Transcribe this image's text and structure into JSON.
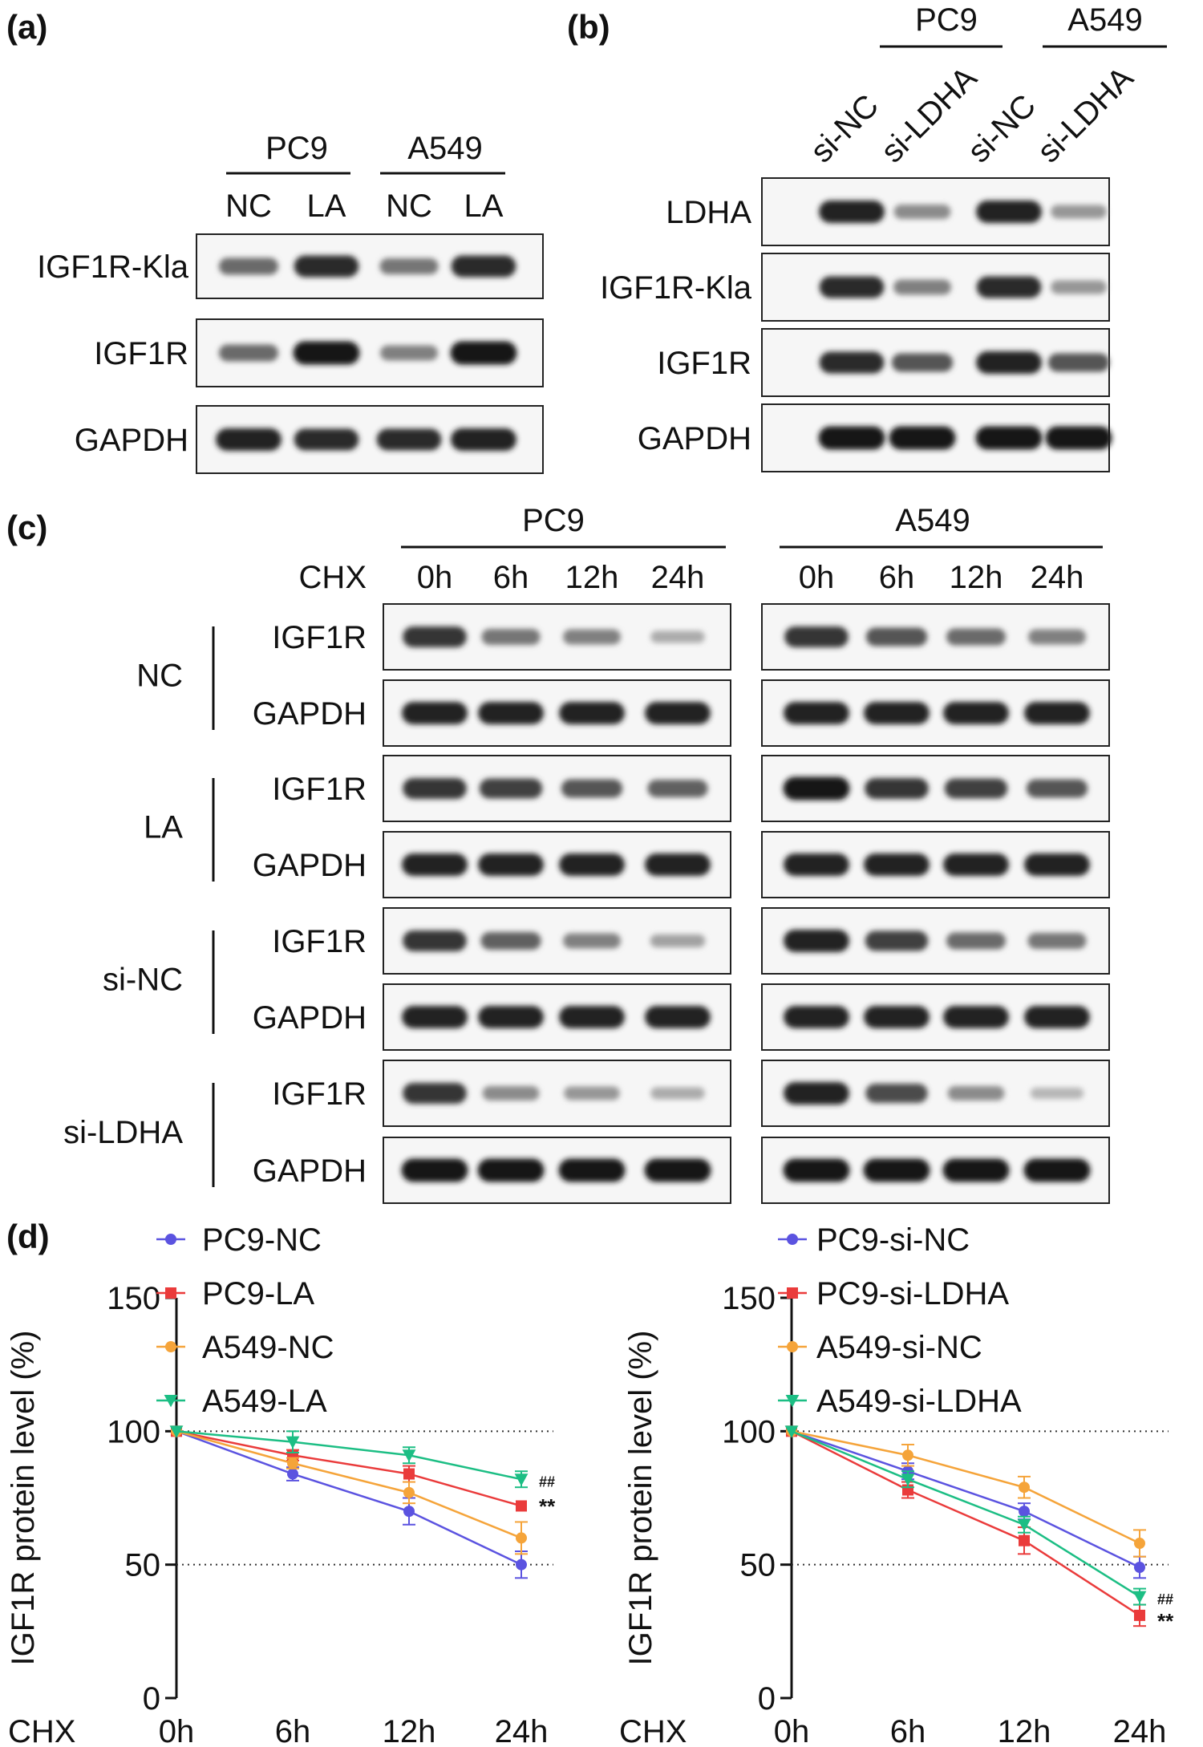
{
  "panel_a": {
    "label": "(a)",
    "cell_lines": [
      "PC9",
      "A549"
    ],
    "lanes": [
      "NC",
      "LA",
      "NC",
      "LA"
    ],
    "blots": [
      {
        "name": "IGF1R-Kla",
        "bands": [
          0.55,
          0.85,
          0.5,
          0.85
        ]
      },
      {
        "name": "IGF1R",
        "bands": [
          0.55,
          0.95,
          0.45,
          0.95
        ]
      },
      {
        "name": "GAPDH",
        "bands": [
          0.9,
          0.85,
          0.85,
          0.9
        ]
      }
    ]
  },
  "panel_b": {
    "label": "(b)",
    "cell_lines": [
      "PC9",
      "A549"
    ],
    "lanes": [
      "si-NC",
      "si-LDHA",
      "si-NC",
      "si-LDHA"
    ],
    "blots": [
      {
        "name": "LDHA",
        "bands": [
          0.9,
          0.4,
          0.9,
          0.35
        ]
      },
      {
        "name": "IGF1R-Kla",
        "bands": [
          0.85,
          0.45,
          0.85,
          0.35
        ]
      },
      {
        "name": "IGF1R",
        "bands": [
          0.85,
          0.65,
          0.9,
          0.65
        ]
      },
      {
        "name": "GAPDH",
        "bands": [
          0.95,
          0.95,
          0.95,
          0.95
        ]
      }
    ]
  },
  "panel_c": {
    "label": "(c)",
    "treatment_label": "CHX",
    "cell_lines": [
      "PC9",
      "A549"
    ],
    "timepoints": [
      "0h",
      "6h",
      "12h",
      "24h"
    ],
    "groups": [
      {
        "name": "NC",
        "rows": [
          {
            "name": "IGF1R",
            "pc9": [
              0.8,
              0.5,
              0.45,
              0.25
            ],
            "a549": [
              0.8,
              0.65,
              0.55,
              0.45
            ]
          },
          {
            "name": "GAPDH",
            "pc9": [
              0.9,
              0.9,
              0.9,
              0.9
            ],
            "a549": [
              0.9,
              0.9,
              0.9,
              0.9
            ]
          }
        ]
      },
      {
        "name": "LA",
        "rows": [
          {
            "name": "IGF1R",
            "pc9": [
              0.8,
              0.75,
              0.65,
              0.6
            ],
            "a549": [
              0.95,
              0.8,
              0.75,
              0.65
            ]
          },
          {
            "name": "GAPDH",
            "pc9": [
              0.9,
              0.9,
              0.9,
              0.9
            ],
            "a549": [
              0.9,
              0.9,
              0.9,
              0.9
            ]
          }
        ]
      },
      {
        "name": "si-NC",
        "rows": [
          {
            "name": "IGF1R",
            "pc9": [
              0.8,
              0.6,
              0.45,
              0.3
            ],
            "a549": [
              0.9,
              0.75,
              0.55,
              0.5
            ]
          },
          {
            "name": "GAPDH",
            "pc9": [
              0.9,
              0.9,
              0.9,
              0.9
            ],
            "a549": [
              0.9,
              0.9,
              0.9,
              0.9
            ]
          }
        ]
      },
      {
        "name": "si-LDHA",
        "rows": [
          {
            "name": "IGF1R",
            "pc9": [
              0.8,
              0.4,
              0.35,
              0.25
            ],
            "a549": [
              0.9,
              0.7,
              0.4,
              0.2
            ]
          },
          {
            "name": "GAPDH",
            "pc9": [
              0.95,
              0.95,
              0.95,
              0.95
            ],
            "a549": [
              0.95,
              0.95,
              0.95,
              0.95
            ]
          }
        ]
      }
    ]
  },
  "panel_d": {
    "label": "(d)",
    "colors": {
      "blue": "#5b53e0",
      "red": "#ea3b3b",
      "orange": "#f5a43a",
      "green": "#1cbe84"
    }
  },
  "chart_data": [
    {
      "type": "line",
      "x": [
        "0h",
        "6h",
        "12h",
        "24h"
      ],
      "xlabel": "CHX",
      "ylabel": "IGF1R protein level (%)",
      "ylim": [
        0,
        150
      ],
      "yticks": [
        0,
        50,
        100,
        150
      ],
      "reference_lines": [
        50,
        100
      ],
      "legend": "top-left",
      "series": [
        {
          "name": "PC9-NC",
          "marker": "circle",
          "color": "#5b53e0",
          "values": [
            100,
            84,
            70,
            50
          ],
          "errors": [
            0,
            2.5,
            5,
            5
          ]
        },
        {
          "name": "PC9-LA",
          "marker": "square",
          "color": "#ea3b3b",
          "values": [
            100,
            91,
            84,
            72
          ],
          "errors": [
            0,
            2,
            3,
            0
          ]
        },
        {
          "name": "A549-NC",
          "marker": "circle",
          "color": "#f5a43a",
          "values": [
            100,
            88,
            77,
            60
          ],
          "errors": [
            0,
            2,
            4,
            6
          ]
        },
        {
          "name": "A549-LA",
          "marker": "triangle",
          "color": "#1cbe84",
          "values": [
            100,
            96,
            91,
            82
          ],
          "errors": [
            0,
            4,
            3,
            3
          ]
        }
      ],
      "annotations": [
        {
          "text": "##",
          "x": "24h",
          "y": 81
        },
        {
          "text": "**",
          "x": "24h",
          "y": 71
        }
      ]
    },
    {
      "type": "line",
      "x": [
        "0h",
        "6h",
        "12h",
        "24h"
      ],
      "xlabel": "CHX",
      "ylabel": "IGF1R protein level (%)",
      "ylim": [
        0,
        150
      ],
      "yticks": [
        0,
        50,
        100,
        150
      ],
      "reference_lines": [
        50,
        100
      ],
      "legend": "top-left",
      "series": [
        {
          "name": "PC9-si-NC",
          "marker": "circle",
          "color": "#5b53e0",
          "values": [
            100,
            85,
            70,
            49
          ],
          "errors": [
            0,
            3,
            3,
            4
          ]
        },
        {
          "name": "PC9-si-LDHA",
          "marker": "square",
          "color": "#ea3b3b",
          "values": [
            100,
            78,
            59,
            31
          ],
          "errors": [
            0,
            3,
            5,
            4
          ]
        },
        {
          "name": "A549-si-NC",
          "marker": "circle",
          "color": "#f5a43a",
          "values": [
            100,
            91,
            79,
            58
          ],
          "errors": [
            0,
            4,
            4,
            5
          ]
        },
        {
          "name": "A549-si-LDHA",
          "marker": "triangle",
          "color": "#1cbe84",
          "values": [
            100,
            82,
            65,
            38
          ],
          "errors": [
            0,
            3,
            3,
            3
          ]
        }
      ],
      "annotations": [
        {
          "text": "##",
          "x": "24h",
          "y": 37
        },
        {
          "text": "**",
          "x": "24h",
          "y": 28
        }
      ]
    }
  ]
}
